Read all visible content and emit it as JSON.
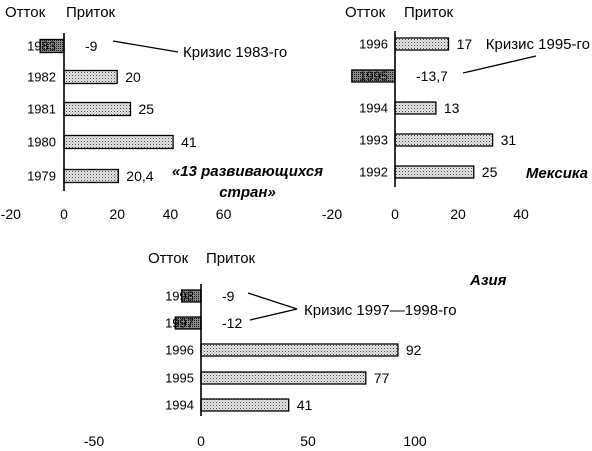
{
  "chart_data": [
    {
      "type": "bar",
      "orientation": "horizontal",
      "title": "«13 развивающихся стран»",
      "direction_labels": {
        "outflow": "Отток",
        "inflow": "Приток"
      },
      "categories": [
        "1983",
        "1982",
        "1981",
        "1980",
        "1979"
      ],
      "values": [
        -9,
        20,
        25,
        41,
        20.4
      ],
      "value_labels": [
        "-9",
        "20",
        "25",
        "41",
        "20,4"
      ],
      "x_ticks": [
        -20,
        0,
        20,
        40,
        60
      ],
      "xlim": [
        -20,
        60
      ],
      "annotation": {
        "text": "Кризис 1983-го"
      },
      "grid": false
    },
    {
      "type": "bar",
      "orientation": "horizontal",
      "title": "Мексика",
      "direction_labels": {
        "outflow": "Отток",
        "inflow": "Приток"
      },
      "categories": [
        "1996",
        "1995",
        "1994",
        "1993",
        "1992"
      ],
      "values": [
        17,
        -13.7,
        13,
        31,
        25
      ],
      "value_labels": [
        "17",
        "-13,7",
        "13",
        "31",
        "25"
      ],
      "x_ticks": [
        -20,
        0,
        20,
        40
      ],
      "xlim": [
        -20,
        40
      ],
      "annotation": {
        "text": "Кризис 1995-го"
      },
      "grid": false
    },
    {
      "type": "bar",
      "orientation": "horizontal",
      "title": "Азия",
      "direction_labels": {
        "outflow": "Отток",
        "inflow": "Приток"
      },
      "categories": [
        "1998",
        "1997",
        "1996",
        "1995",
        "1994"
      ],
      "values": [
        -9,
        -12,
        92,
        77,
        41
      ],
      "value_labels": [
        "-9",
        "-12",
        "92",
        "77",
        "41"
      ],
      "x_ticks": [
        -50,
        0,
        50,
        100
      ],
      "xlim": [
        -50,
        100
      ],
      "annotation": {
        "text": "Кризис 1997—1998-го"
      },
      "grid": false
    }
  ],
  "colors": {
    "positive_bar_fill": "#e4e4e4",
    "negative_bar_fill": "#8c8c8c",
    "ink": "#000000"
  }
}
